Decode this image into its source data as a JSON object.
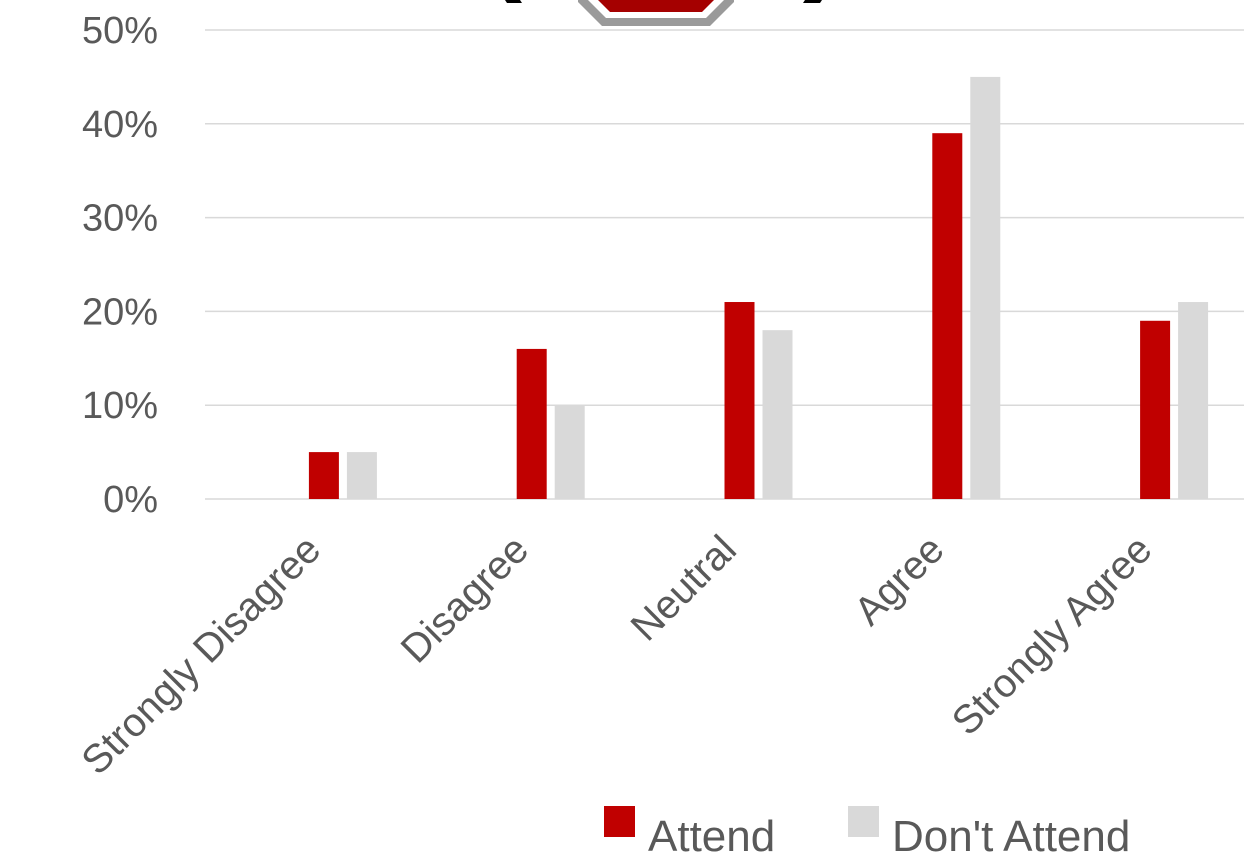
{
  "chart_data": {
    "type": "bar",
    "categories": [
      "Strongly Disagree",
      "Disagree",
      "Neutral",
      "Agree",
      "Strongly Agree"
    ],
    "series": [
      {
        "name": "Attend",
        "values": [
          5,
          16,
          21,
          39,
          19
        ],
        "color": "#C00000"
      },
      {
        "name": "Don't Attend",
        "values": [
          5,
          10,
          18,
          45,
          21
        ],
        "color": "#D9D9D9"
      }
    ],
    "y_ticks": [
      "0%",
      "10%",
      "20%",
      "30%",
      "40%",
      "50%"
    ],
    "ylim": [
      0,
      50
    ],
    "grid": true,
    "legend_position": "bottom-right"
  },
  "decoration": {
    "icon": "stop-sign-icon",
    "fill_color": "#A50000",
    "border_color": "#8C8C8C"
  }
}
